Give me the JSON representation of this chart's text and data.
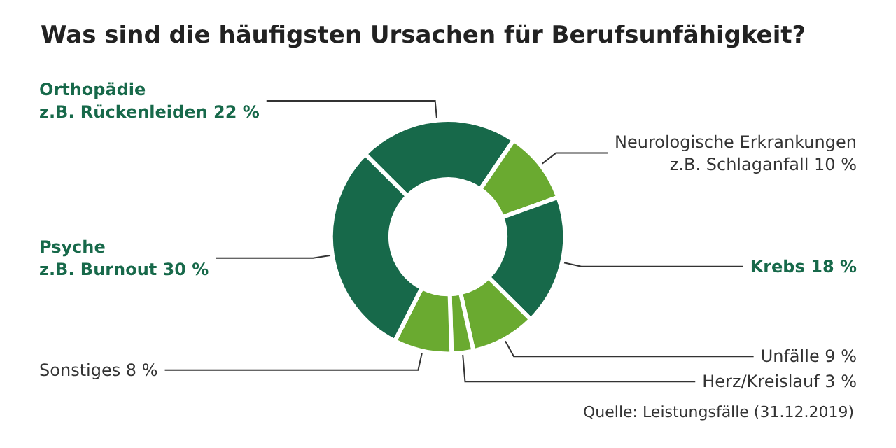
{
  "chart_data": {
    "type": "donut",
    "title": "Was sind die häufigsten Ursachen für Berufsunfähigkeit?",
    "categories": [
      "Orthopädie\nz.B. Rückenleiden",
      "Neurologische Erkrankungen\nz.B. Schlaganfall",
      "Krebs",
      "Unfälle",
      "Herz/Kreislauf",
      "Sonstiges",
      "Psyche\nz.B. Burnout"
    ],
    "values": [
      22,
      10,
      18,
      9,
      3,
      8,
      30
    ],
    "colors": [
      "#17694a",
      "#6aaa30",
      "#17694a",
      "#6aaa30",
      "#6aaa30",
      "#6aaa30",
      "#17694a"
    ],
    "value_labels": [
      "22 %",
      "10 %",
      "18 %",
      "9 %",
      "3 %",
      "8 %",
      "30 %"
    ],
    "annotations": [
      "Quelle: Leistungsfälle (31.12.2019)"
    ],
    "legend": false
  }
}
